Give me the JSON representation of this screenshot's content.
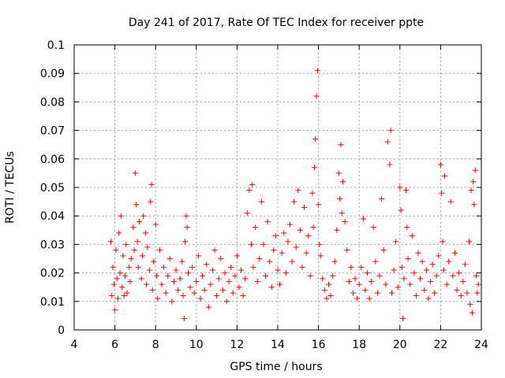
{
  "chart_data": {
    "type": "scatter",
    "title": "Day 241 of 2017, Rate Of TEC Index for receiver ppte",
    "xlabel": "GPS time / hours",
    "ylabel": "ROTI / TECUs",
    "xlim": [
      4,
      24
    ],
    "ylim": [
      0,
      0.1
    ],
    "xticks": [
      4,
      6,
      8,
      10,
      12,
      14,
      16,
      18,
      20,
      22,
      24
    ],
    "yticks": [
      0,
      0.01,
      0.02,
      0.03,
      0.04,
      0.05,
      0.06,
      0.07,
      0.08,
      0.09,
      0.1
    ],
    "xtick_labels": [
      "4",
      "6",
      "8",
      "10",
      "12",
      "14",
      "16",
      "18",
      "20",
      "22",
      "24"
    ],
    "ytick_labels": [
      "0",
      "0.01",
      "0.02",
      "0.03",
      "0.04",
      "0.05",
      "0.06",
      "0.07",
      "0.08",
      "0.09",
      "0.1"
    ],
    "grid": true,
    "marker": "+",
    "color": "#ff0000",
    "series": [
      {
        "name": "ROTI",
        "points": [
          [
            5.8,
            0.031
          ],
          [
            5.85,
            0.012
          ],
          [
            5.9,
            0.022
          ],
          [
            5.95,
            0.016
          ],
          [
            6.0,
            0.007
          ],
          [
            6.05,
            0.028
          ],
          [
            6.1,
            0.018
          ],
          [
            6.15,
            0.011
          ],
          [
            6.2,
            0.034
          ],
          [
            6.25,
            0.02
          ],
          [
            6.3,
            0.04
          ],
          [
            6.35,
            0.015
          ],
          [
            6.4,
            0.026
          ],
          [
            6.45,
            0.012
          ],
          [
            6.5,
            0.019
          ],
          [
            6.55,
            0.03
          ],
          [
            6.6,
            0.013
          ],
          [
            6.7,
            0.022
          ],
          [
            6.75,
            0.017
          ],
          [
            6.8,
            0.025
          ],
          [
            6.9,
            0.036
          ],
          [
            6.95,
            0.028
          ],
          [
            7.0,
            0.055
          ],
          [
            7.05,
            0.044
          ],
          [
            7.1,
            0.031
          ],
          [
            7.15,
            0.022
          ],
          [
            7.2,
            0.038
          ],
          [
            7.3,
            0.018
          ],
          [
            7.35,
            0.026
          ],
          [
            7.4,
            0.04
          ],
          [
            7.5,
            0.034
          ],
          [
            7.55,
            0.016
          ],
          [
            7.6,
            0.029
          ],
          [
            7.7,
            0.021
          ],
          [
            7.75,
            0.045
          ],
          [
            7.8,
            0.051
          ],
          [
            7.85,
            0.014
          ],
          [
            7.9,
            0.024
          ],
          [
            8.0,
            0.037
          ],
          [
            8.05,
            0.019
          ],
          [
            8.1,
            0.011
          ],
          [
            8.2,
            0.028
          ],
          [
            8.3,
            0.016
          ],
          [
            8.4,
            0.022
          ],
          [
            8.5,
            0.013
          ],
          [
            8.6,
            0.019
          ],
          [
            8.7,
            0.025
          ],
          [
            8.8,
            0.01
          ],
          [
            8.9,
            0.017
          ],
          [
            9.0,
            0.021
          ],
          [
            9.1,
            0.014
          ],
          [
            9.2,
            0.018
          ],
          [
            9.3,
            0.024
          ],
          [
            9.35,
            0.012
          ],
          [
            9.4,
            0.004
          ],
          [
            9.45,
            0.031
          ],
          [
            9.5,
            0.04
          ],
          [
            9.55,
            0.036
          ],
          [
            9.6,
            0.02
          ],
          [
            9.7,
            0.015
          ],
          [
            9.8,
            0.022
          ],
          [
            9.9,
            0.013
          ],
          [
            10.0,
            0.017
          ],
          [
            10.1,
            0.026
          ],
          [
            10.2,
            0.011
          ],
          [
            10.3,
            0.019
          ],
          [
            10.4,
            0.014
          ],
          [
            10.5,
            0.023
          ],
          [
            10.6,
            0.008
          ],
          [
            10.7,
            0.016
          ],
          [
            10.8,
            0.021
          ],
          [
            10.9,
            0.028
          ],
          [
            11.0,
            0.012
          ],
          [
            11.1,
            0.018
          ],
          [
            11.2,
            0.025
          ],
          [
            11.3,
            0.014
          ],
          [
            11.4,
            0.02
          ],
          [
            11.5,
            0.01
          ],
          [
            11.6,
            0.017
          ],
          [
            11.7,
            0.022
          ],
          [
            11.8,
            0.013
          ],
          [
            11.9,
            0.019
          ],
          [
            12.0,
            0.026
          ],
          [
            12.1,
            0.015
          ],
          [
            12.2,
            0.021
          ],
          [
            12.3,
            0.012
          ],
          [
            12.4,
            0.018
          ],
          [
            12.5,
            0.041
          ],
          [
            12.6,
            0.049
          ],
          [
            12.7,
            0.03
          ],
          [
            12.75,
            0.051
          ],
          [
            12.8,
            0.022
          ],
          [
            12.9,
            0.036
          ],
          [
            13.0,
            0.017
          ],
          [
            13.1,
            0.025
          ],
          [
            13.2,
            0.045
          ],
          [
            13.3,
            0.03
          ],
          [
            13.4,
            0.019
          ],
          [
            13.5,
            0.038
          ],
          [
            13.6,
            0.024
          ],
          [
            13.7,
            0.015
          ],
          [
            13.8,
            0.028
          ],
          [
            13.9,
            0.033
          ],
          [
            14.0,
            0.021
          ],
          [
            14.1,
            0.016
          ],
          [
            14.2,
            0.027
          ],
          [
            14.3,
            0.034
          ],
          [
            14.4,
            0.02
          ],
          [
            14.5,
            0.031
          ],
          [
            14.6,
            0.037
          ],
          [
            14.7,
            0.024
          ],
          [
            14.8,
            0.045
          ],
          [
            14.9,
            0.029
          ],
          [
            15.0,
            0.049
          ],
          [
            15.1,
            0.035
          ],
          [
            15.2,
            0.022
          ],
          [
            15.3,
            0.043
          ],
          [
            15.4,
            0.027
          ],
          [
            15.5,
            0.033
          ],
          [
            15.6,
            0.019
          ],
          [
            15.7,
            0.048
          ],
          [
            15.75,
            0.036
          ],
          [
            15.8,
            0.057
          ],
          [
            15.85,
            0.067
          ],
          [
            15.9,
            0.082
          ],
          [
            15.95,
            0.091
          ],
          [
            16.0,
            0.044
          ],
          [
            16.05,
            0.03
          ],
          [
            16.1,
            0.026
          ],
          [
            16.2,
            0.018
          ],
          [
            16.3,
            0.014
          ],
          [
            16.4,
            0.011
          ],
          [
            16.5,
            0.016
          ],
          [
            16.6,
            0.012
          ],
          [
            16.7,
            0.019
          ],
          [
            16.8,
            0.024
          ],
          [
            16.9,
            0.035
          ],
          [
            17.0,
            0.055
          ],
          [
            17.05,
            0.046
          ],
          [
            17.1,
            0.065
          ],
          [
            17.15,
            0.041
          ],
          [
            17.2,
            0.052
          ],
          [
            17.3,
            0.038
          ],
          [
            17.4,
            0.028
          ],
          [
            17.5,
            0.017
          ],
          [
            17.6,
            0.022
          ],
          [
            17.7,
            0.013
          ],
          [
            17.8,
            0.018
          ],
          [
            17.9,
            0.011
          ],
          [
            18.0,
            0.016
          ],
          [
            18.1,
            0.022
          ],
          [
            18.2,
            0.039
          ],
          [
            18.3,
            0.014
          ],
          [
            18.4,
            0.02
          ],
          [
            18.5,
            0.011
          ],
          [
            18.6,
            0.017
          ],
          [
            18.7,
            0.036
          ],
          [
            18.8,
            0.024
          ],
          [
            18.9,
            0.013
          ],
          [
            19.0,
            0.019
          ],
          [
            19.1,
            0.046
          ],
          [
            19.2,
            0.028
          ],
          [
            19.3,
            0.016
          ],
          [
            19.4,
            0.066
          ],
          [
            19.5,
            0.058
          ],
          [
            19.55,
            0.07
          ],
          [
            19.6,
            0.013
          ],
          [
            19.7,
            0.021
          ],
          [
            19.8,
            0.031
          ],
          [
            19.9,
            0.015
          ],
          [
            20.0,
            0.05
          ],
          [
            20.05,
            0.042
          ],
          [
            20.1,
            0.022
          ],
          [
            20.15,
            0.004
          ],
          [
            20.2,
            0.018
          ],
          [
            20.3,
            0.049
          ],
          [
            20.35,
            0.036
          ],
          [
            20.4,
            0.025
          ],
          [
            20.5,
            0.016
          ],
          [
            20.6,
            0.033
          ],
          [
            20.7,
            0.02
          ],
          [
            20.8,
            0.012
          ],
          [
            20.9,
            0.027
          ],
          [
            21.0,
            0.018
          ],
          [
            21.1,
            0.024
          ],
          [
            21.2,
            0.014
          ],
          [
            21.3,
            0.021
          ],
          [
            21.4,
            0.011
          ],
          [
            21.5,
            0.017
          ],
          [
            21.6,
            0.023
          ],
          [
            21.7,
            0.013
          ],
          [
            21.8,
            0.019
          ],
          [
            21.9,
            0.026
          ],
          [
            22.0,
            0.058
          ],
          [
            22.05,
            0.048
          ],
          [
            22.1,
            0.031
          ],
          [
            22.15,
            0.021
          ],
          [
            22.2,
            0.054
          ],
          [
            22.3,
            0.016
          ],
          [
            22.4,
            0.024
          ],
          [
            22.5,
            0.045
          ],
          [
            22.6,
            0.019
          ],
          [
            22.7,
            0.027
          ],
          [
            22.8,
            0.014
          ],
          [
            22.9,
            0.02
          ],
          [
            23.0,
            0.012
          ],
          [
            23.1,
            0.017
          ],
          [
            23.2,
            0.023
          ],
          [
            23.3,
            0.013
          ],
          [
            23.4,
            0.031
          ],
          [
            23.45,
            0.009
          ],
          [
            23.5,
            0.049
          ],
          [
            23.55,
            0.006
          ],
          [
            23.6,
            0.052
          ],
          [
            23.65,
            0.044
          ],
          [
            23.7,
            0.056
          ],
          [
            23.75,
            0.019
          ],
          [
            23.8,
            0.013
          ],
          [
            23.85,
            0.016
          ]
        ]
      }
    ]
  }
}
